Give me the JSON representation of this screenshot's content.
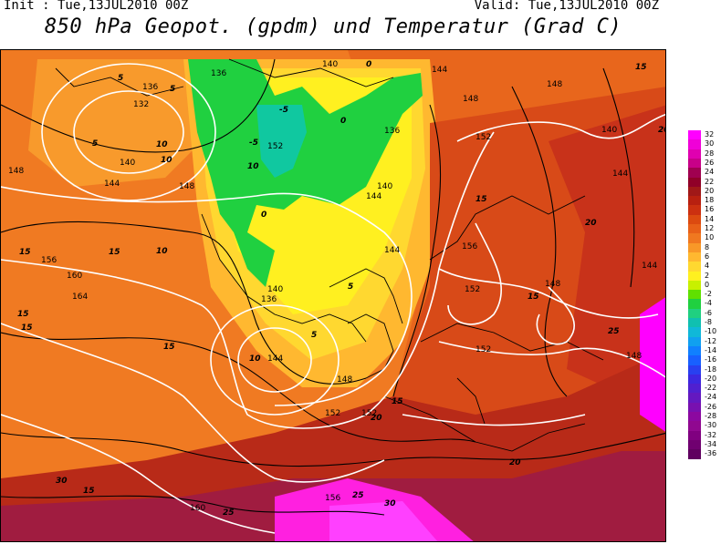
{
  "header": {
    "init": "Init : Tue,13JUL2010 00Z",
    "valid": "Valid: Tue,13JUL2010 00Z",
    "title": "850 hPa Geopot. (gpdm) und Temperatur (Grad C)"
  },
  "legend": {
    "values": [
      "32",
      "30",
      "28",
      "26",
      "24",
      "22",
      "20",
      "18",
      "16",
      "14",
      "12",
      "10",
      "8",
      "6",
      "4",
      "2",
      "0",
      "-2",
      "-4",
      "-6",
      "-8",
      "-10",
      "-12",
      "-14",
      "-16",
      "-18",
      "-20",
      "-22",
      "-24",
      "-26",
      "-28",
      "-30",
      "-32",
      "-34",
      "-36"
    ],
    "colors": [
      "#ff00ff",
      "#f000d8",
      "#e000b0",
      "#c80088",
      "#a00050",
      "#900028",
      "#a01818",
      "#b82010",
      "#cc3010",
      "#dc4a10",
      "#e86018",
      "#f07820",
      "#f89828",
      "#ffb830",
      "#ffd830",
      "#fff020",
      "#c8f000",
      "#60e000",
      "#20d040",
      "#20d080",
      "#10c0b0",
      "#10b8d8",
      "#10a0f0",
      "#1080ff",
      "#1860ff",
      "#2840f0",
      "#3c28e0",
      "#5020d0",
      "#6418c0",
      "#7810b0",
      "#8c08a0",
      "#900890",
      "#800080",
      "#700070",
      "#600060"
    ]
  },
  "map_labels": {
    "height_contours": [
      "136",
      "136",
      "132",
      "140",
      "148",
      "148",
      "152",
      "140",
      "144",
      "148",
      "144",
      "140",
      "136",
      "144",
      "148",
      "156",
      "152",
      "152",
      "144",
      "140",
      "144",
      "148",
      "152",
      "152",
      "164",
      "160",
      "156",
      "156",
      "160",
      "148",
      "140",
      "144",
      "148",
      "144",
      "136",
      "152"
    ],
    "temperature_contours": [
      "5",
      "5",
      "5",
      "10",
      "10",
      "10",
      "15",
      "15",
      "15",
      "15",
      "15",
      "15",
      "15",
      "20",
      "20",
      "20",
      "25",
      "25",
      "30",
      "30",
      "0",
      "0",
      "0",
      "-5",
      "-5",
      "5",
      "10",
      "15",
      "20",
      "15",
      "25",
      "5",
      "10",
      "15"
    ]
  },
  "colors": {
    "frame": "#000000",
    "height_line": "#ffffff",
    "temp_line": "#000000"
  }
}
